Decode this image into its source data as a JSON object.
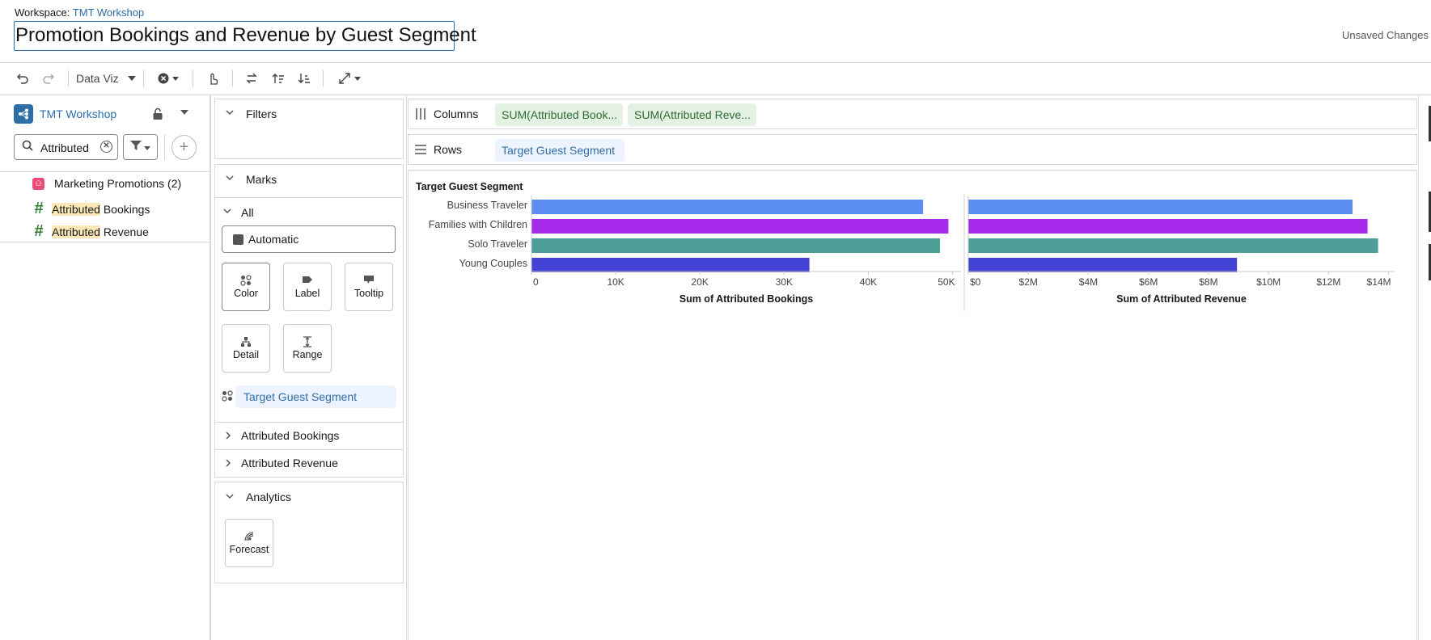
{
  "header": {
    "workspace_label": "Workspace:",
    "workspace_name": "TMT Workshop",
    "title": "Promotion Bookings and Revenue by Guest Segment",
    "status": "Unsaved Changes"
  },
  "toolbar": {
    "view_label": "Data Viz"
  },
  "data_panel": {
    "source_name": "TMT Workshop",
    "search_value": "Attributed",
    "items": [
      {
        "label": "Marketing Promotions (2)",
        "icon": "object-icon"
      },
      {
        "highlight": "Attributed",
        "rest": " Bookings",
        "icon": "number-icon"
      },
      {
        "highlight": "Attributed",
        "rest": " Revenue",
        "icon": "number-icon"
      }
    ]
  },
  "shelf_panel": {
    "filters_label": "Filters",
    "marks_label": "Marks",
    "all_label": "All",
    "mark_type": "Automatic",
    "buttons": [
      "Color",
      "Label",
      "Tooltip",
      "Detail",
      "Range"
    ],
    "color_field": "Target Guest Segment",
    "measures": [
      "Attributed Bookings",
      "Attributed Revenue"
    ],
    "analytics_label": "Analytics",
    "forecast_label": "Forecast"
  },
  "shelves": {
    "columns_label": "Columns",
    "columns": [
      "SUM(Attributed Book...",
      "SUM(Attributed Reve..."
    ],
    "rows_label": "Rows",
    "rows": [
      "Target Guest Segment"
    ]
  },
  "chart_data": [
    {
      "type": "bar",
      "orientation": "horizontal",
      "title": "",
      "ylabel": "Target Guest Segment",
      "xlabel": "Sum of Attributed Bookings",
      "categories": [
        "Business Traveler",
        "Families with Children",
        "Solo Traveler",
        "Young Couples"
      ],
      "values": [
        46500,
        49500,
        48500,
        33000
      ],
      "colors": [
        "#5b8ef0",
        "#a52aea",
        "#4e9e98",
        "#4343d6"
      ],
      "xlim": [
        0,
        51000
      ],
      "ticks": [
        0,
        10000,
        20000,
        30000,
        40000,
        50000
      ],
      "tick_labels": [
        "0",
        "10K",
        "20K",
        "30K",
        "40K",
        "50K"
      ],
      "grid": false
    },
    {
      "type": "bar",
      "orientation": "horizontal",
      "title": "",
      "xlabel": "Sum of Attributed Revenue",
      "categories": [
        "Business Traveler",
        "Families with Children",
        "Solo Traveler",
        "Young Couples"
      ],
      "values": [
        12800000,
        13300000,
        13650000,
        8950000
      ],
      "colors": [
        "#5b8ef0",
        "#a52aea",
        "#4e9e98",
        "#4343d6"
      ],
      "xlim": [
        0,
        14200000
      ],
      "ticks": [
        0,
        2000000,
        4000000,
        6000000,
        8000000,
        10000000,
        12000000,
        14000000
      ],
      "tick_labels": [
        "$0",
        "$2M",
        "$4M",
        "$6M",
        "$8M",
        "$10M",
        "$12M",
        "$14M"
      ],
      "grid": false
    }
  ]
}
